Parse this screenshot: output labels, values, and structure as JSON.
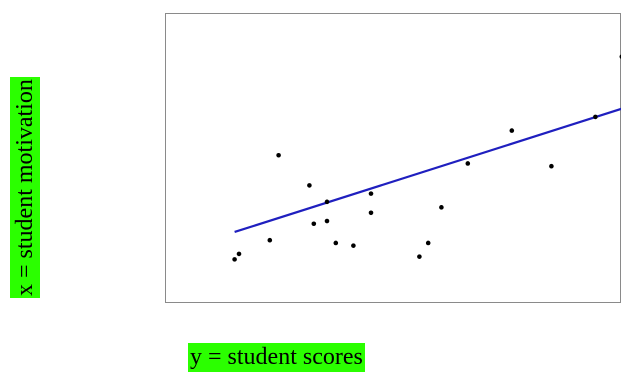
{
  "labels": {
    "y_axis": "x = student motivation",
    "x_axis": "y = student scores"
  },
  "colors": {
    "label_highlight": "#2bff00",
    "fit_line": "#1f1fbf",
    "points": "#000000",
    "frame": "#8a8a8a"
  },
  "chart_data": {
    "type": "scatter",
    "title": "",
    "xlabel": "y = student scores",
    "ylabel": "x = student motivation",
    "xlim": [
      0,
      100
    ],
    "ylim": [
      0,
      100
    ],
    "grid": false,
    "legend": "none",
    "points": [
      {
        "x": 14,
        "y": 13
      },
      {
        "x": 15,
        "y": 15
      },
      {
        "x": 22,
        "y": 20
      },
      {
        "x": 24,
        "y": 51
      },
      {
        "x": 31,
        "y": 40
      },
      {
        "x": 32,
        "y": 26
      },
      {
        "x": 35,
        "y": 34
      },
      {
        "x": 35,
        "y": 27
      },
      {
        "x": 37,
        "y": 19
      },
      {
        "x": 41,
        "y": 18
      },
      {
        "x": 45,
        "y": 37
      },
      {
        "x": 45,
        "y": 30
      },
      {
        "x": 56,
        "y": 14
      },
      {
        "x": 58,
        "y": 19
      },
      {
        "x": 61,
        "y": 32
      },
      {
        "x": 67,
        "y": 48
      },
      {
        "x": 77,
        "y": 60
      },
      {
        "x": 86,
        "y": 47
      },
      {
        "x": 96,
        "y": 65
      },
      {
        "x": 102,
        "y": 87
      }
    ],
    "fit_line": {
      "x": [
        14,
        102
      ],
      "y": [
        23,
        68
      ]
    }
  }
}
